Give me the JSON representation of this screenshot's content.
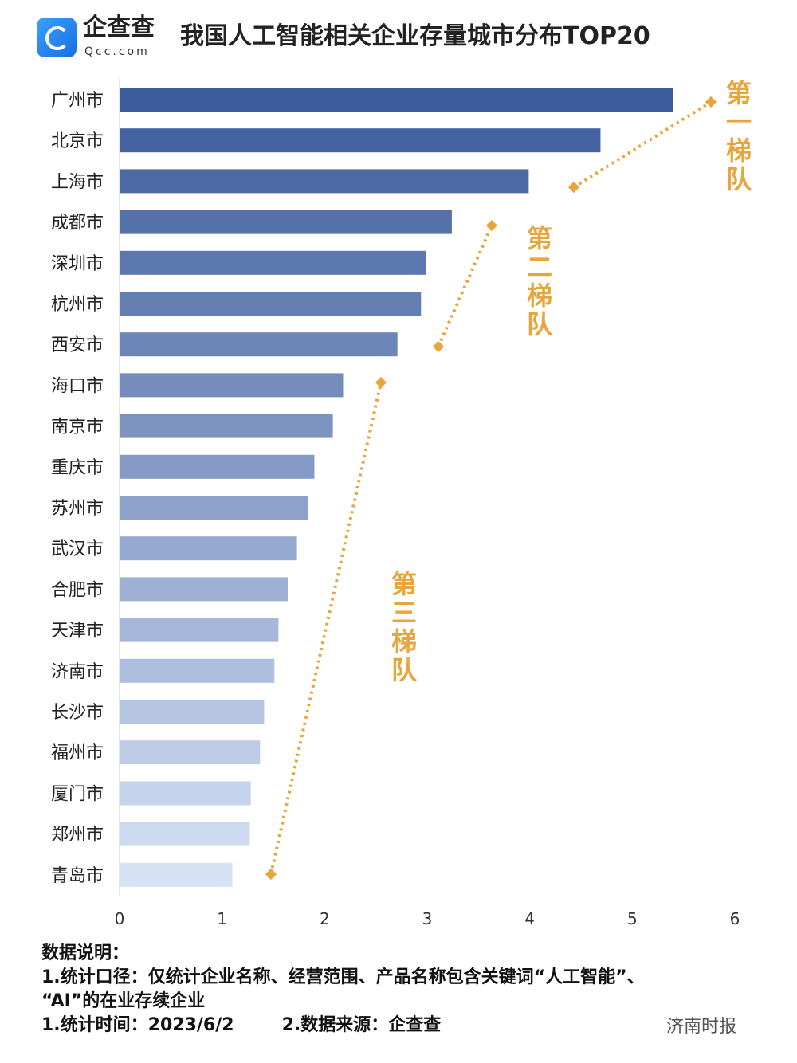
{
  "header": {
    "brand": "企查查",
    "brand_sub": "Qcc.com",
    "title": "我国人工智能相关企业存量城市分布TOP20"
  },
  "chart_data": {
    "type": "bar",
    "orientation": "horizontal",
    "title": "我国人工智能相关企业存量城市分布TOP20",
    "categories": [
      "广州市",
      "北京市",
      "上海市",
      "成都市",
      "深圳市",
      "杭州市",
      "西安市",
      "海口市",
      "南京市",
      "重庆市",
      "苏州市",
      "武汉市",
      "合肥市",
      "天津市",
      "济南市",
      "长沙市",
      "福州市",
      "厦门市",
      "郑州市",
      "青岛市"
    ],
    "values": [
      5.4,
      4.69,
      3.99,
      3.24,
      2.99,
      2.94,
      2.71,
      2.18,
      2.08,
      1.9,
      1.84,
      1.73,
      1.64,
      1.55,
      1.51,
      1.41,
      1.37,
      1.28,
      1.27,
      1.1
    ],
    "xlim": [
      0,
      6
    ],
    "xticks": [
      "0",
      "1",
      "2",
      "3",
      "4",
      "5",
      "6"
    ],
    "grid": false,
    "colors": {
      "dark": "#3d5c9c",
      "light": "#d6e1f5",
      "annotation": "#e8a53c"
    },
    "annotations": [
      {
        "label": "第一梯队",
        "cities": [
          "广州市",
          "北京市",
          "上海市"
        ]
      },
      {
        "label": "第二梯队",
        "cities": [
          "成都市",
          "深圳市",
          "杭州市",
          "西安市"
        ]
      },
      {
        "label": "第三梯队",
        "cities": [
          "海口市",
          "南京市",
          "重庆市",
          "苏州市",
          "武汉市",
          "合肥市",
          "天津市",
          "济南市",
          "长沙市",
          "福州市",
          "厦门市",
          "郑州市",
          "青岛市"
        ]
      }
    ]
  },
  "notes": {
    "heading": "数据说明：",
    "line1": "1.统计口径：仅统计企业名称、经营范围、产品名称包含关键词“人工智能”、",
    "line2": "“AI”的在业存续企业",
    "time": "1.统计时间：2023/6/2",
    "source": "2.数据来源：企查查"
  },
  "watermark": "济南时报"
}
